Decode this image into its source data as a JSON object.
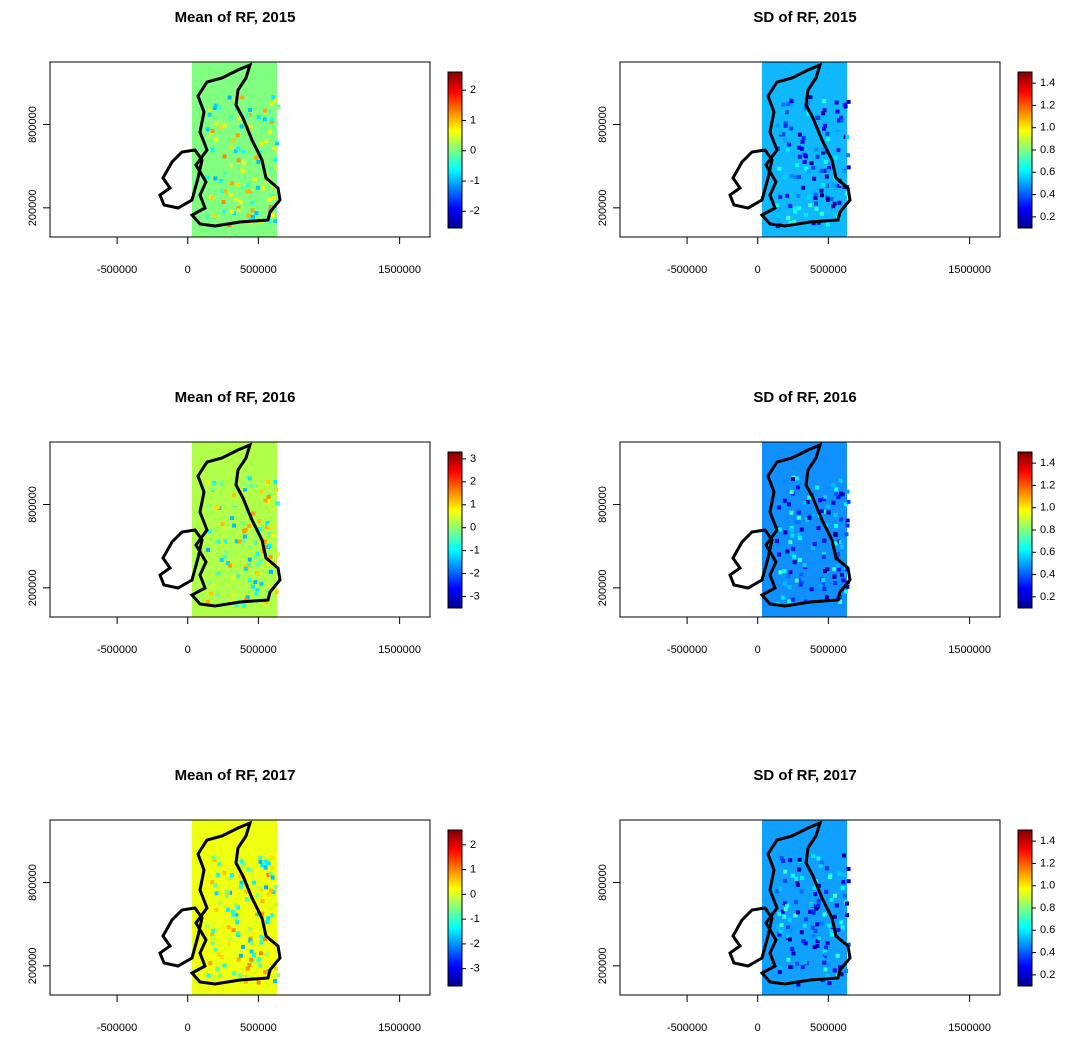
{
  "chart_data": [
    {
      "type": "raster",
      "title": "Mean of RF, 2015",
      "color": "#80ff80",
      "xlim": [
        -975000,
        1715000
      ],
      "ylim": [
        -10000,
        1250000
      ],
      "xticks": [
        -500000,
        0,
        500000,
        1500000
      ],
      "yticks": [
        200000,
        800000
      ],
      "clim": [
        -2.55,
        2.6
      ],
      "cticks": [
        2,
        1,
        0,
        -1,
        -2
      ]
    },
    {
      "type": "raster",
      "title": "SD of RF, 2015",
      "color": "#10b8ff",
      "xlim": [
        -975000,
        1715000
      ],
      "ylim": [
        -10000,
        1250000
      ],
      "xticks": [
        -500000,
        0,
        500000,
        1500000
      ],
      "yticks": [
        200000,
        800000
      ],
      "clim": [
        0.1,
        1.5
      ],
      "cticks": [
        1.4,
        1.2,
        {
          "value": 1.0,
          "label": "1.0"
        },
        0.8,
        0.6,
        0.4,
        0.2
      ]
    },
    {
      "type": "raster",
      "title": "Mean of RF, 2016",
      "color": "#b0ff48",
      "xlim": [
        -975000,
        1715000
      ],
      "ylim": [
        -10000,
        1250000
      ],
      "xticks": [
        -500000,
        0,
        500000,
        1500000
      ],
      "yticks": [
        200000,
        800000
      ],
      "clim": [
        -3.5,
        3.3
      ],
      "cticks": [
        3,
        2,
        1,
        0,
        -1,
        -2,
        -3
      ]
    },
    {
      "type": "raster",
      "title": "SD of RF, 2016",
      "color": "#1090ff",
      "xlim": [
        -975000,
        1715000
      ],
      "ylim": [
        -10000,
        1250000
      ],
      "xticks": [
        -500000,
        0,
        500000,
        1500000
      ],
      "yticks": [
        200000,
        800000
      ],
      "clim": [
        0.1,
        1.5
      ],
      "cticks": [
        1.4,
        1.2,
        {
          "value": 1.0,
          "label": "1.0"
        },
        0.8,
        0.6,
        0.4,
        0.2
      ]
    },
    {
      "type": "raster",
      "title": "Mean of RF, 2017",
      "color": "#eeff10",
      "xlim": [
        -975000,
        1715000
      ],
      "ylim": [
        -10000,
        1250000
      ],
      "xticks": [
        -500000,
        0,
        500000,
        1500000
      ],
      "yticks": [
        200000,
        800000
      ],
      "clim": [
        -3.7,
        2.6
      ],
      "cticks": [
        2,
        1,
        0,
        -1,
        -2,
        -3
      ]
    },
    {
      "type": "raster",
      "title": "SD of RF, 2017",
      "color": "#10a0ff",
      "xlim": [
        -975000,
        1715000
      ],
      "ylim": [
        -10000,
        1250000
      ],
      "xticks": [
        -500000,
        0,
        500000,
        1500000
      ],
      "yticks": [
        200000,
        800000
      ],
      "clim": [
        0.1,
        1.5
      ],
      "cticks": [
        1.4,
        1.2,
        {
          "value": 1.0,
          "label": "1.0"
        },
        0.8,
        0.6,
        0.4,
        0.2
      ]
    }
  ]
}
